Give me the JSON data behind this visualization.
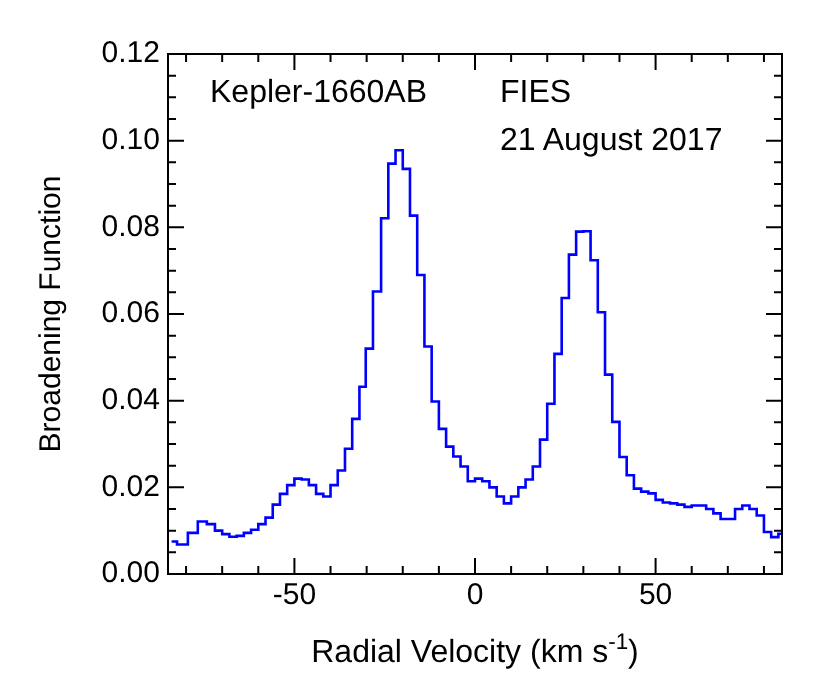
{
  "chart_data": {
    "type": "step",
    "xlabel": "Radial Velocity (km s$^{-1}$)",
    "ylabel": "Broadening Function",
    "annotations": [
      "Kepler-1660AB",
      "FIES",
      "21 August 2017"
    ],
    "x": [
      -84,
      -81,
      -78,
      -75.5,
      -73,
      -71,
      -69,
      -67,
      -65,
      -63,
      -61,
      -59,
      -57,
      -55,
      -53,
      -51,
      -49,
      -47,
      -45,
      -43,
      -41,
      -39,
      -37,
      -35,
      -33,
      -31,
      -29.5,
      -27,
      -25,
      -23,
      -21,
      -19,
      -17,
      -15,
      -13,
      -11,
      -9,
      -7,
      -5,
      -3,
      -1,
      1,
      3,
      5,
      7,
      9,
      11,
      13,
      15,
      17,
      19,
      21,
      23,
      25,
      27,
      29,
      31,
      33,
      35,
      37,
      39,
      41,
      43,
      45,
      47,
      49,
      51,
      53,
      55,
      57,
      59,
      61,
      63,
      65,
      67,
      69,
      71,
      73,
      75,
      77,
      79,
      81,
      83,
      85
    ],
    "series": [
      {
        "color": "#0000ff",
        "values": [
          0.0075,
          0.0068,
          0.0095,
          0.0121,
          0.0115,
          0.01,
          0.0092,
          0.0086,
          0.0088,
          0.0095,
          0.0102,
          0.0115,
          0.013,
          0.016,
          0.0185,
          0.0205,
          0.022,
          0.0218,
          0.0205,
          0.0185,
          0.0179,
          0.0205,
          0.0239,
          0.0289,
          0.0358,
          0.0432,
          0.052,
          0.0652,
          0.0821,
          0.0947,
          0.0978,
          0.0935,
          0.0827,
          0.069,
          0.0525,
          0.0398,
          0.0335,
          0.0294,
          0.0271,
          0.0248,
          0.0214,
          0.022,
          0.0214,
          0.02,
          0.0179,
          0.0163,
          0.0179,
          0.02,
          0.0218,
          0.0248,
          0.031,
          0.0393,
          0.0508,
          0.0637,
          0.0737,
          0.079,
          0.0791,
          0.0724,
          0.0604,
          0.046,
          0.0351,
          0.027,
          0.0228,
          0.0197,
          0.019,
          0.0186,
          0.0171,
          0.0165,
          0.0163,
          0.016,
          0.0155,
          0.0158,
          0.0158,
          0.015,
          0.014,
          0.0127,
          0.0127,
          0.015,
          0.0158,
          0.015,
          0.0135,
          0.0097,
          0.0085,
          0.0093
        ]
      }
    ],
    "xlim": [
      -85,
      85
    ],
    "xticks": [
      {
        "value": -80,
        "label": null
      },
      {
        "value": -70,
        "label": null
      },
      {
        "value": -60,
        "label": null
      },
      -50,
      {
        "value": -40,
        "label": null
      },
      {
        "value": -30,
        "label": null
      },
      {
        "value": -20,
        "label": null
      },
      {
        "value": -10,
        "label": null
      },
      0,
      {
        "value": 10,
        "label": null
      },
      {
        "value": 20,
        "label": null
      },
      {
        "value": 30,
        "label": null
      },
      {
        "value": 40,
        "label": null
      },
      50,
      {
        "value": 60,
        "label": null
      },
      {
        "value": 70,
        "label": null
      },
      {
        "value": 80,
        "label": null
      }
    ],
    "ylim": [
      0,
      0.12
    ],
    "yticks": [
      {
        "value": 0,
        "label": "0.00"
      },
      {
        "value": 0.005,
        "label": null
      },
      {
        "value": 0.01,
        "label": null
      },
      {
        "value": 0.015,
        "label": null
      },
      {
        "value": 0.02,
        "label": "0.02"
      },
      {
        "value": 0.025,
        "label": null
      },
      {
        "value": 0.03,
        "label": null
      },
      {
        "value": 0.035,
        "label": null
      },
      {
        "value": 0.04,
        "label": "0.04"
      },
      {
        "value": 0.045,
        "label": null
      },
      {
        "value": 0.05,
        "label": null
      },
      {
        "value": 0.055,
        "label": null
      },
      {
        "value": 0.06,
        "label": "0.06"
      },
      {
        "value": 0.065,
        "label": null
      },
      {
        "value": 0.07,
        "label": null
      },
      {
        "value": 0.075,
        "label": null
      },
      {
        "value": 0.08,
        "label": "0.08"
      },
      {
        "value": 0.085,
        "label": null
      },
      {
        "value": 0.09,
        "label": null
      },
      {
        "value": 0.095,
        "label": null
      },
      {
        "value": 0.1,
        "label": "0.10"
      },
      {
        "value": 0.105,
        "label": null
      },
      {
        "value": 0.11,
        "label": null
      },
      {
        "value": 0.115,
        "label": null
      },
      {
        "value": 0.12,
        "label": "0.12"
      }
    ],
    "grid": false,
    "legend": false
  }
}
